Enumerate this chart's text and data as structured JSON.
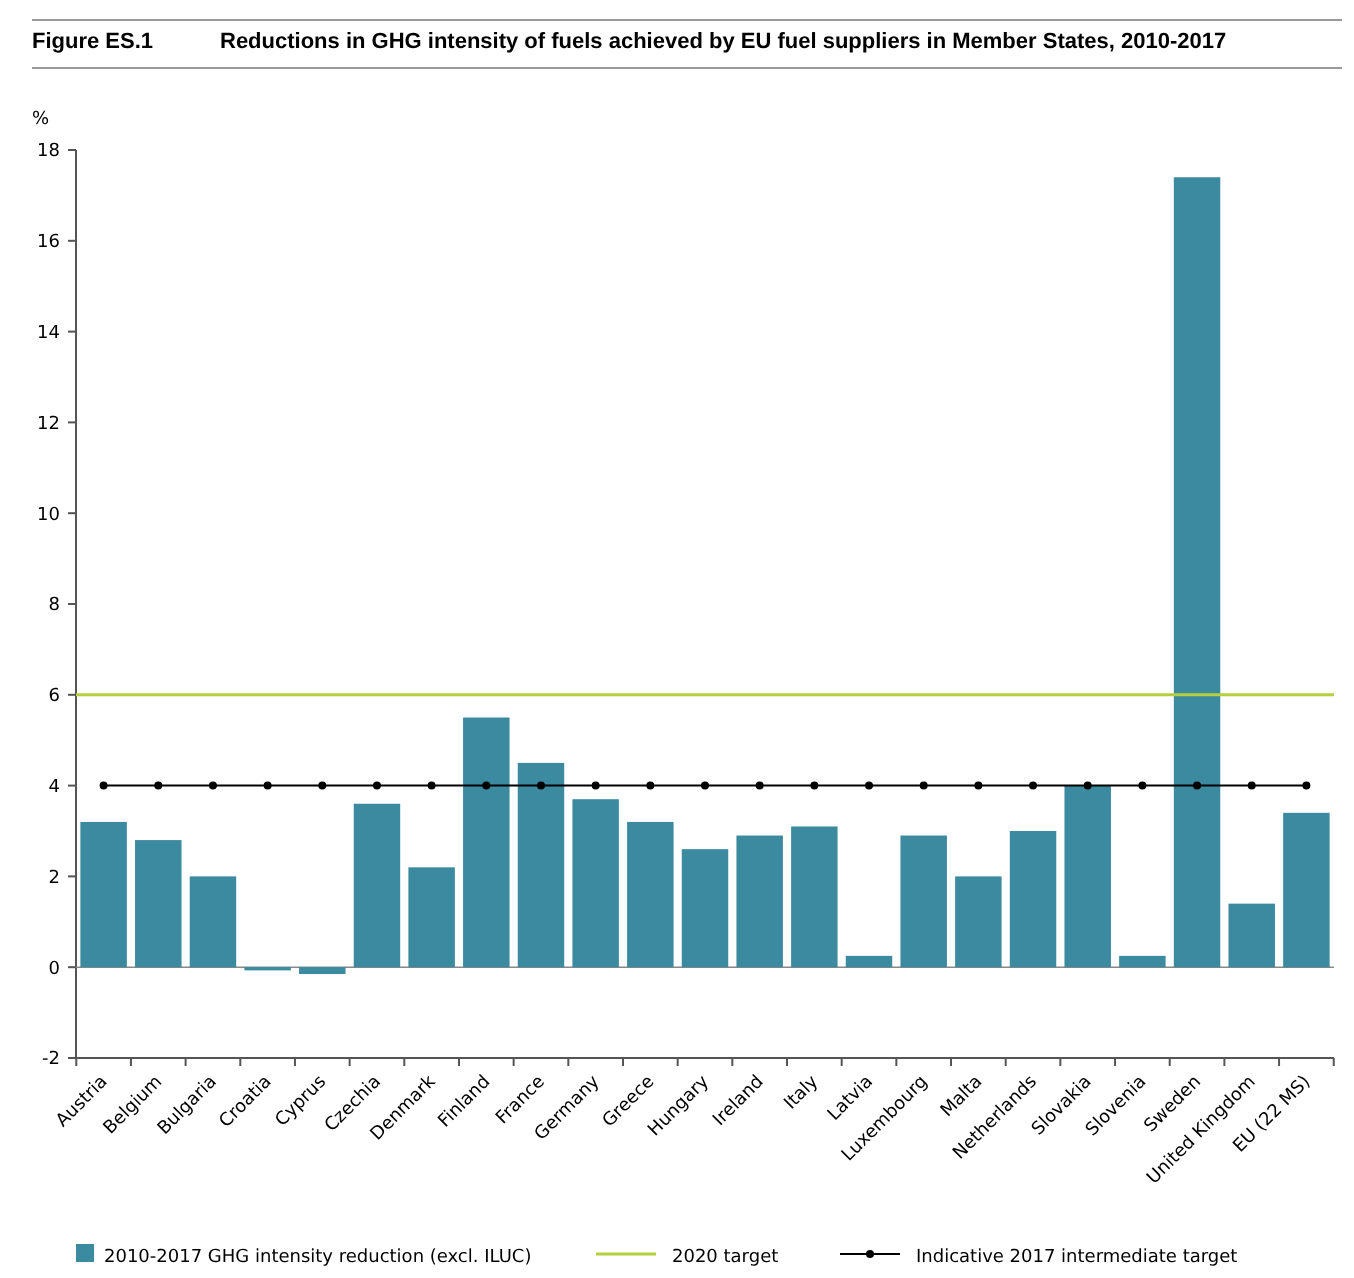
{
  "chart_data": {
    "type": "bar",
    "title": "Figure ES.1",
    "subtitle": "Reductions in GHG intensity of fuels achieved by EU fuel suppliers in Member States, 2010-2017",
    "ylabel": "%",
    "categories": [
      "Austria",
      "Belgium",
      "Bulgaria",
      "Croatia",
      "Cyprus",
      "Czechia",
      "Denmark",
      "Finland",
      "France",
      "Germany",
      "Greece",
      "Hungary",
      "Ireland",
      "Italy",
      "Latvia",
      "Luxembourg",
      "Malta",
      "Netherlands",
      "Slovakia",
      "Slovenia",
      "Sweden",
      "United Kingdom",
      "EU (22 MS)"
    ],
    "series": [
      {
        "name": "2010-2017 GHG intensity reduction (excl. ILUC)",
        "color": "#3b8aa0",
        "values": [
          3.2,
          2.8,
          2.0,
          -0.07,
          -0.15,
          3.6,
          2.2,
          5.5,
          4.5,
          3.7,
          3.2,
          2.6,
          2.9,
          3.1,
          0.25,
          2.9,
          2.0,
          3.0,
          4.0,
          0.25,
          17.4,
          1.4,
          3.4
        ]
      },
      {
        "name": "Indicative 2017 intermediate target",
        "type": "line",
        "color": "#000000",
        "marker": "circle",
        "values": [
          4,
          4,
          4,
          4,
          4,
          4,
          4,
          4,
          4,
          4,
          4,
          4,
          4,
          4,
          4,
          4,
          4,
          4,
          4,
          4,
          4,
          4,
          4
        ]
      }
    ],
    "ref_lines": [
      {
        "axis": "y",
        "value": 6,
        "label": "2020 target",
        "color": "#b5cf3e"
      }
    ],
    "ylim": [
      -2,
      18
    ],
    "yticks": [
      -2,
      0,
      2,
      4,
      6,
      8,
      10,
      12,
      14,
      16,
      18
    ],
    "grid": false,
    "legend": "bottom"
  }
}
